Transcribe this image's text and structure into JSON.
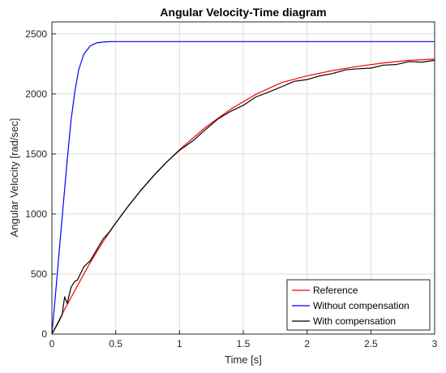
{
  "chart_data": {
    "type": "line",
    "title": "Angular Velocity-Time diagram",
    "xlabel": "Time [s]",
    "ylabel": "Angular Velocity [rad/sec]",
    "xlim": [
      0,
      3
    ],
    "ylim": [
      0,
      2600
    ],
    "xticks": [
      0,
      0.5,
      1,
      1.5,
      2,
      2.5,
      3
    ],
    "xtick_labels": [
      "0",
      "0.5",
      "1",
      "1.5",
      "2",
      "2.5",
      "3"
    ],
    "yticks": [
      0,
      500,
      1000,
      1500,
      2000,
      2500
    ],
    "ytick_labels": [
      "0",
      "500",
      "1000",
      "1500",
      "2000",
      "2500"
    ],
    "grid": true,
    "legend_position": "bottom-right",
    "series": [
      {
        "name": "Reference",
        "color": "#ff0000",
        "x": [
          0,
          0.1,
          0.2,
          0.3,
          0.4,
          0.5,
          0.6,
          0.7,
          0.8,
          0.9,
          1.0,
          1.2,
          1.4,
          1.6,
          1.8,
          2.0,
          2.2,
          2.4,
          2.6,
          2.8,
          3.0
        ],
        "y": [
          0,
          205,
          403,
          595,
          768,
          925,
          1068,
          1200,
          1322,
          1433,
          1535,
          1719,
          1873,
          1997,
          2095,
          2150,
          2195,
          2230,
          2258,
          2280,
          2290
        ]
      },
      {
        "name": "Without compensation",
        "color": "#0000ff",
        "x": [
          0,
          0.03,
          0.06,
          0.09,
          0.12,
          0.15,
          0.18,
          0.21,
          0.25,
          0.3,
          0.35,
          0.4,
          0.45,
          0.5,
          0.6,
          0.8,
          1.0,
          1.5,
          2.0,
          2.5,
          3.0
        ],
        "y": [
          0,
          350,
          720,
          1090,
          1450,
          1780,
          2020,
          2200,
          2330,
          2400,
          2425,
          2432,
          2435,
          2436,
          2436,
          2436,
          2436,
          2436,
          2436,
          2436,
          2436
        ]
      },
      {
        "name": "With compensation",
        "color": "#000000",
        "x": [
          0,
          0.05,
          0.08,
          0.1,
          0.12,
          0.15,
          0.18,
          0.2,
          0.25,
          0.3,
          0.35,
          0.4,
          0.45,
          0.5,
          0.6,
          0.7,
          0.8,
          0.9,
          1.0,
          1.1,
          1.2,
          1.3,
          1.4,
          1.5,
          1.6,
          1.7,
          1.8,
          1.9,
          2.0,
          2.1,
          2.2,
          2.3,
          2.4,
          2.5,
          2.6,
          2.7,
          2.8,
          2.9,
          3.0
        ],
        "y": [
          0,
          95,
          160,
          310,
          255,
          390,
          440,
          450,
          560,
          610,
          700,
          790,
          850,
          925,
          1068,
          1200,
          1322,
          1433,
          1530,
          1605,
          1700,
          1790,
          1855,
          1905,
          1975,
          2015,
          2060,
          2105,
          2120,
          2150,
          2170,
          2200,
          2210,
          2215,
          2240,
          2245,
          2270,
          2265,
          2280
        ]
      }
    ]
  }
}
